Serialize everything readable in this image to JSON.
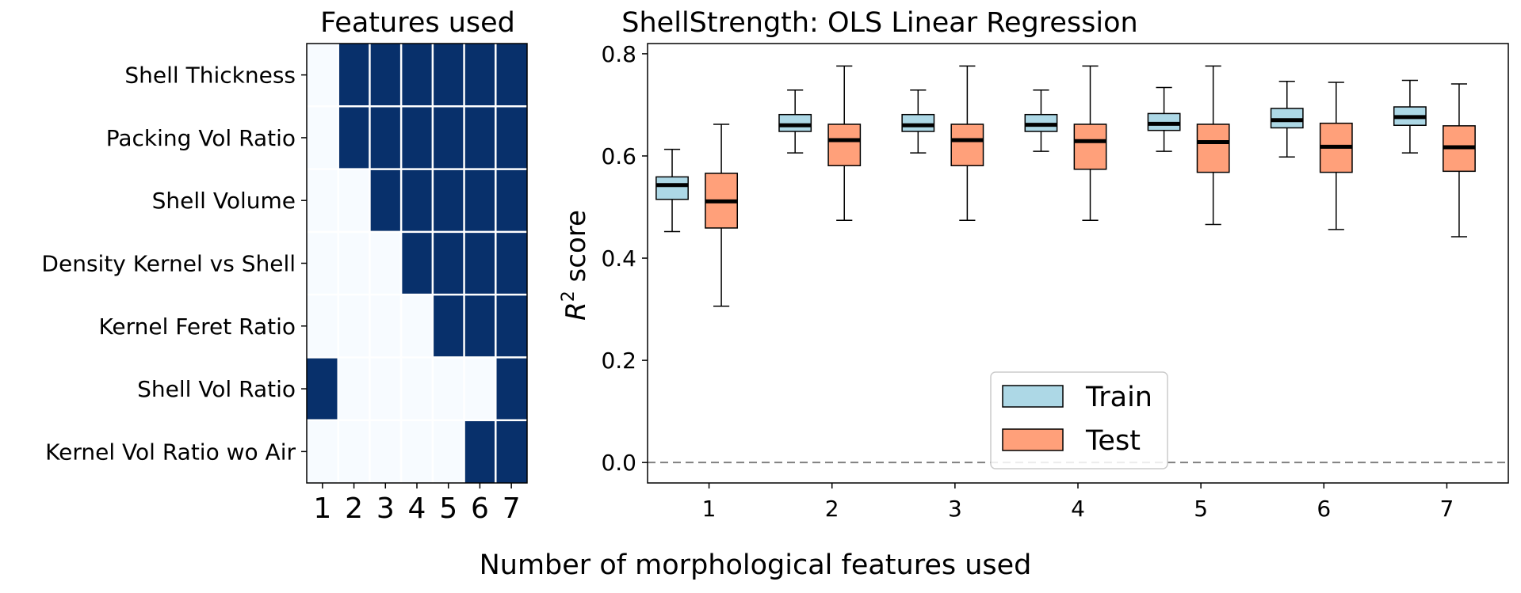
{
  "colors": {
    "heat_on": "#08306b",
    "heat_off": "#f7fbff",
    "train": "#add8e6",
    "test": "#ffa07a",
    "median": "#000000",
    "zero_line": "#808080"
  },
  "supxlabel": "Number of morphological features used",
  "chart_data": [
    {
      "type": "heatmap",
      "title": "Features used",
      "rows": [
        "Shell Thickness",
        "Packing Vol Ratio",
        "Shell Volume",
        "Density Kernel vs Shell",
        "Kernel Feret Ratio",
        "Shell Vol Ratio",
        "Kernel Vol Ratio wo Air"
      ],
      "columns": [
        "1",
        "2",
        "3",
        "4",
        "5",
        "6",
        "7"
      ],
      "values": [
        [
          0,
          1,
          1,
          1,
          1,
          1,
          1
        ],
        [
          0,
          1,
          1,
          1,
          1,
          1,
          1
        ],
        [
          0,
          0,
          1,
          1,
          1,
          1,
          1
        ],
        [
          0,
          0,
          0,
          1,
          1,
          1,
          1
        ],
        [
          0,
          0,
          0,
          0,
          1,
          1,
          1
        ],
        [
          1,
          0,
          0,
          0,
          0,
          0,
          1
        ],
        [
          0,
          0,
          0,
          0,
          0,
          1,
          1
        ]
      ]
    },
    {
      "type": "box",
      "title": "ShellStrength: OLS Linear Regression",
      "ylabel_main": "R",
      "ylabel_sup": "2",
      "ylabel_rest": " score",
      "categories": [
        "1",
        "2",
        "3",
        "4",
        "5",
        "6",
        "7"
      ],
      "ylim": [
        -0.04,
        0.82
      ],
      "yticks": [
        "0.0",
        "0.2",
        "0.4",
        "0.6",
        "0.8"
      ],
      "reference_line": 0.0,
      "legend_position": "lower center",
      "series": [
        {
          "name": "Train",
          "boxes": [
            {
              "whislo": 0.452,
              "q1": 0.515,
              "med": 0.543,
              "q3": 0.559,
              "whishi": 0.613
            },
            {
              "whislo": 0.606,
              "q1": 0.648,
              "med": 0.66,
              "q3": 0.681,
              "whishi": 0.729
            },
            {
              "whislo": 0.606,
              "q1": 0.648,
              "med": 0.66,
              "q3": 0.681,
              "whishi": 0.729
            },
            {
              "whislo": 0.609,
              "q1": 0.648,
              "med": 0.661,
              "q3": 0.681,
              "whishi": 0.729
            },
            {
              "whislo": 0.609,
              "q1": 0.65,
              "med": 0.663,
              "q3": 0.683,
              "whishi": 0.734
            },
            {
              "whislo": 0.598,
              "q1": 0.655,
              "med": 0.67,
              "q3": 0.693,
              "whishi": 0.746
            },
            {
              "whislo": 0.606,
              "q1": 0.66,
              "med": 0.676,
              "q3": 0.696,
              "whishi": 0.748
            }
          ]
        },
        {
          "name": "Test",
          "boxes": [
            {
              "whislo": 0.306,
              "q1": 0.459,
              "med": 0.511,
              "q3": 0.566,
              "whishi": 0.662
            },
            {
              "whislo": 0.474,
              "q1": 0.581,
              "med": 0.631,
              "q3": 0.662,
              "whishi": 0.776
            },
            {
              "whislo": 0.474,
              "q1": 0.581,
              "med": 0.631,
              "q3": 0.662,
              "whishi": 0.776
            },
            {
              "whislo": 0.474,
              "q1": 0.574,
              "med": 0.629,
              "q3": 0.662,
              "whishi": 0.776
            },
            {
              "whislo": 0.466,
              "q1": 0.568,
              "med": 0.627,
              "q3": 0.662,
              "whishi": 0.776
            },
            {
              "whislo": 0.456,
              "q1": 0.568,
              "med": 0.618,
              "q3": 0.664,
              "whishi": 0.744
            },
            {
              "whislo": 0.442,
              "q1": 0.57,
              "med": 0.617,
              "q3": 0.659,
              "whishi": 0.741
            }
          ]
        }
      ]
    }
  ]
}
